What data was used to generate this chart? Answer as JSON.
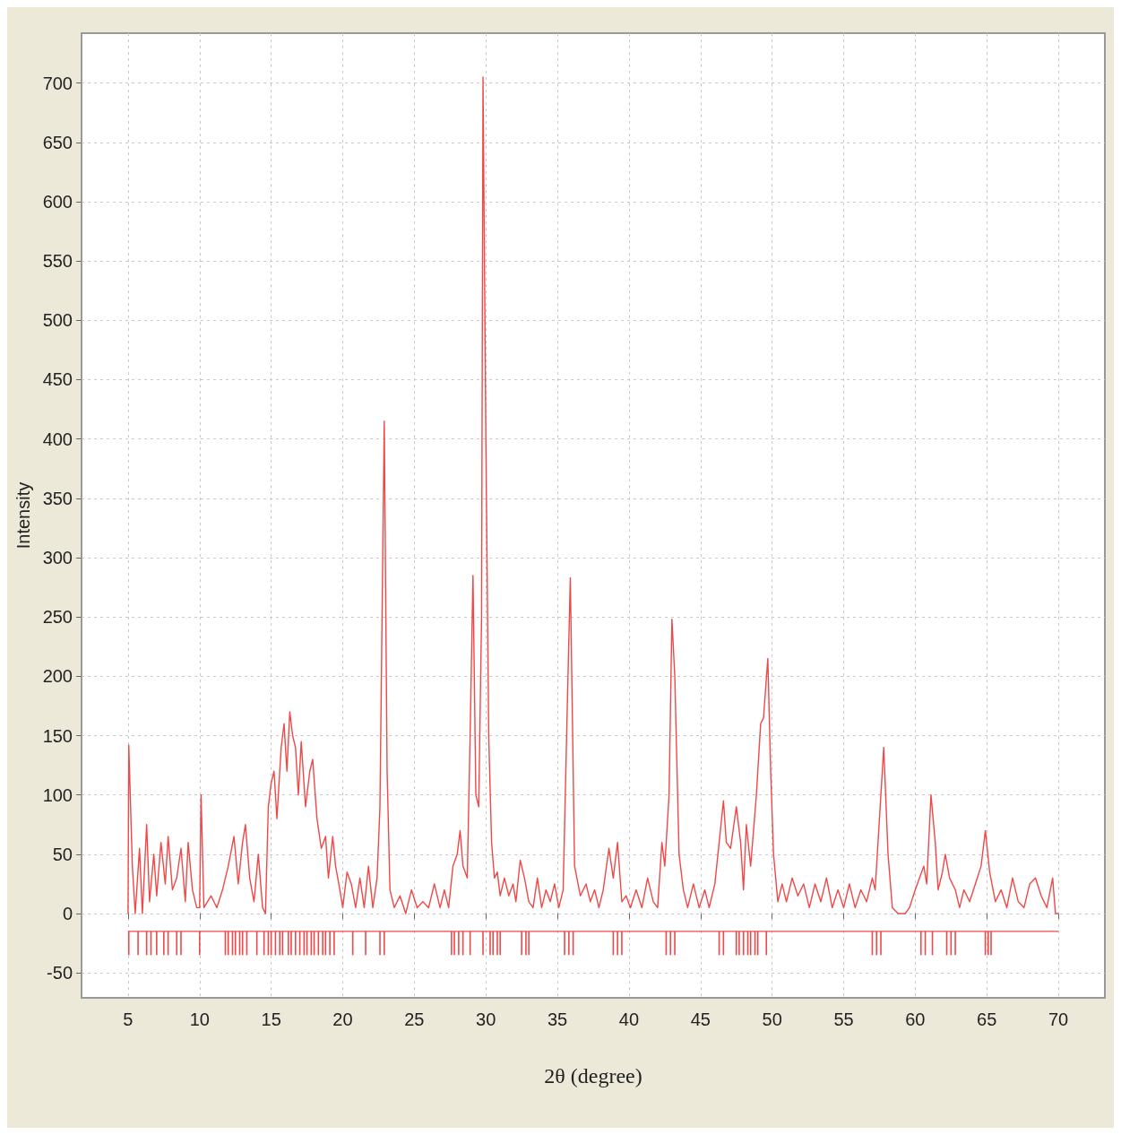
{
  "chart_data": {
    "type": "line",
    "xlabel": "2θ (degree)",
    "ylabel": "Intensity",
    "xlim": [
      1.75,
      73.25
    ],
    "ylim": [
      -71,
      742
    ],
    "xticks": [
      5,
      10,
      15,
      20,
      25,
      30,
      35,
      40,
      45,
      50,
      55,
      60,
      65,
      70
    ],
    "yticks": [
      -50,
      0,
      50,
      100,
      150,
      200,
      250,
      300,
      350,
      400,
      450,
      500,
      550,
      600,
      650,
      700
    ],
    "grid": true,
    "series": [
      {
        "color": "#f04848",
        "x": [
          5.0,
          5.05,
          5.3,
          5.5,
          5.8,
          6.0,
          6.3,
          6.5,
          6.8,
          7.0,
          7.3,
          7.6,
          7.8,
          8.1,
          8.4,
          8.7,
          9.0,
          9.2,
          9.5,
          9.8,
          10.0,
          10.1,
          10.3,
          10.8,
          11.2,
          11.6,
          12.0,
          12.4,
          12.7,
          13.0,
          13.2,
          13.5,
          13.8,
          14.1,
          14.4,
          14.6,
          14.8,
          15.0,
          15.2,
          15.4,
          15.7,
          15.9,
          16.1,
          16.3,
          16.5,
          16.7,
          16.9,
          17.1,
          17.4,
          17.7,
          17.9,
          18.2,
          18.5,
          18.8,
          19.0,
          19.3,
          19.5,
          19.8,
          20.0,
          20.3,
          20.6,
          20.9,
          21.2,
          21.5,
          21.8,
          22.1,
          22.4,
          22.6,
          22.9,
          23.1,
          23.3,
          23.6,
          24.0,
          24.4,
          24.8,
          25.2,
          25.6,
          26.0,
          26.4,
          26.8,
          27.1,
          27.4,
          27.7,
          28.0,
          28.2,
          28.4,
          28.7,
          28.9,
          29.1,
          29.3,
          29.5,
          29.7,
          29.8,
          30.0,
          30.2,
          30.4,
          30.6,
          30.8,
          31.0,
          31.3,
          31.6,
          31.9,
          32.1,
          32.4,
          32.7,
          33.0,
          33.3,
          33.6,
          33.9,
          34.2,
          34.5,
          34.8,
          35.1,
          35.4,
          35.7,
          35.9,
          36.2,
          36.6,
          37.0,
          37.3,
          37.6,
          37.9,
          38.2,
          38.6,
          38.9,
          39.2,
          39.5,
          39.8,
          40.1,
          40.5,
          40.9,
          41.3,
          41.7,
          42.0,
          42.3,
          42.5,
          42.8,
          43.0,
          43.2,
          43.5,
          43.8,
          44.1,
          44.5,
          44.9,
          45.3,
          45.6,
          46.0,
          46.3,
          46.6,
          46.8,
          47.1,
          47.5,
          47.8,
          48.0,
          48.2,
          48.5,
          48.9,
          49.2,
          49.4,
          49.7,
          49.9,
          50.1,
          50.4,
          50.7,
          51.0,
          51.4,
          51.8,
          52.2,
          52.6,
          53.0,
          53.4,
          53.8,
          54.2,
          54.6,
          55.0,
          55.4,
          55.8,
          56.2,
          56.6,
          57.0,
          57.2,
          57.6,
          57.8,
          58.1,
          58.4,
          58.8,
          59.3,
          59.6,
          60.0,
          60.3,
          60.6,
          60.8,
          61.1,
          61.4,
          61.6,
          61.9,
          62.1,
          62.4,
          62.8,
          63.1,
          63.4,
          63.8,
          64.2,
          64.6,
          64.9,
          65.2,
          65.6,
          66.0,
          66.4,
          66.8,
          67.2,
          67.6,
          68.0,
          68.4,
          68.8,
          69.2,
          69.6,
          69.8,
          70.0
        ],
        "values": [
          0,
          142,
          40,
          0,
          55,
          0,
          75,
          10,
          50,
          15,
          60,
          25,
          65,
          20,
          30,
          55,
          10,
          60,
          20,
          5,
          5,
          100,
          5,
          15,
          5,
          20,
          40,
          65,
          25,
          60,
          75,
          30,
          10,
          50,
          5,
          0,
          90,
          110,
          120,
          80,
          140,
          160,
          120,
          170,
          150,
          140,
          100,
          145,
          90,
          120,
          130,
          80,
          55,
          65,
          30,
          65,
          40,
          20,
          5,
          35,
          25,
          5,
          30,
          5,
          40,
          5,
          30,
          90,
          415,
          120,
          20,
          5,
          15,
          0,
          20,
          5,
          10,
          5,
          25,
          5,
          20,
          5,
          40,
          50,
          70,
          40,
          30,
          150,
          285,
          100,
          90,
          250,
          705,
          400,
          150,
          60,
          30,
          35,
          15,
          30,
          15,
          25,
          10,
          45,
          30,
          10,
          5,
          30,
          5,
          20,
          10,
          25,
          5,
          20,
          180,
          283,
          40,
          15,
          25,
          10,
          20,
          5,
          20,
          55,
          30,
          60,
          10,
          15,
          5,
          20,
          5,
          30,
          10,
          5,
          60,
          40,
          100,
          248,
          200,
          50,
          20,
          5,
          25,
          5,
          20,
          5,
          25,
          60,
          95,
          60,
          55,
          90,
          60,
          20,
          75,
          40,
          100,
          160,
          165,
          215,
          120,
          50,
          10,
          25,
          10,
          30,
          15,
          25,
          5,
          25,
          10,
          30,
          5,
          20,
          5,
          25,
          5,
          20,
          10,
          30,
          20,
          100,
          140,
          50,
          5,
          0,
          0,
          5,
          20,
          30,
          40,
          25,
          100,
          60,
          20,
          35,
          50,
          30,
          20,
          5,
          20,
          10,
          25,
          40,
          70,
          35,
          10,
          20,
          5,
          30,
          10,
          5,
          25,
          30,
          15,
          5,
          30,
          0,
          0
        ]
      },
      {
        "type": "bar",
        "color": "#f04848",
        "x": [
          5.05,
          5.7,
          6.3,
          6.6,
          7.0,
          7.5,
          7.8,
          8.4,
          8.7,
          10.0,
          11.8,
          12.0,
          12.3,
          12.5,
          12.8,
          13.0,
          13.3,
          14.0,
          14.5,
          14.8,
          15.0,
          15.3,
          15.6,
          15.8,
          16.2,
          16.4,
          16.7,
          17.0,
          17.3,
          17.5,
          17.8,
          18.0,
          18.3,
          18.6,
          18.8,
          19.1,
          19.4,
          20.7,
          21.6,
          22.6,
          22.9,
          27.6,
          27.8,
          28.1,
          28.4,
          28.9,
          29.8,
          30.3,
          30.5,
          30.8,
          31.0,
          32.5,
          32.8,
          33.0,
          35.5,
          35.8,
          36.1,
          38.9,
          39.2,
          39.5,
          42.6,
          42.9,
          43.2,
          46.3,
          46.6,
          47.5,
          47.7,
          48.0,
          48.3,
          48.5,
          48.8,
          49.0,
          49.6,
          57.0,
          57.3,
          57.6,
          60.4,
          60.7,
          61.2,
          62.2,
          62.5,
          62.8,
          64.9,
          65.1,
          65.3
        ],
        "base": [
          -35,
          -35,
          -35,
          -35,
          -35,
          -35,
          -35,
          -35,
          -35,
          -35,
          -35,
          -35,
          -35,
          -35,
          -35,
          -35,
          -35,
          -35,
          -35,
          -35,
          -35,
          -35,
          -35,
          -35,
          -35,
          -35,
          -35,
          -35,
          -35,
          -35,
          -35,
          -35,
          -35,
          -35,
          -35,
          -35,
          -35,
          -35,
          -35,
          -35,
          -35,
          -35,
          -35,
          -35,
          -35,
          -35,
          -35,
          -35,
          -35,
          -35,
          -35,
          -35,
          -35,
          -35,
          -35,
          -35,
          -35,
          -35,
          -35,
          -35,
          -35,
          -35,
          -35,
          -35,
          -35,
          -35,
          -35,
          -35,
          -35,
          -35,
          -35,
          -35,
          -35,
          -35,
          -35,
          -35,
          -35,
          -35,
          -35,
          -35,
          -35,
          -35,
          -35,
          -35,
          -35
        ],
        "values": [
          20,
          20,
          20,
          20,
          20,
          20,
          20,
          20,
          20,
          20,
          20,
          20,
          20,
          20,
          20,
          20,
          20,
          20,
          20,
          20,
          20,
          20,
          20,
          20,
          20,
          20,
          20,
          20,
          20,
          20,
          20,
          20,
          20,
          20,
          20,
          20,
          20,
          20,
          20,
          20,
          20,
          20,
          20,
          20,
          20,
          20,
          20,
          20,
          20,
          20,
          20,
          20,
          20,
          20,
          20,
          20,
          20,
          20,
          20,
          20,
          20,
          20,
          20,
          20,
          20,
          20,
          20,
          20,
          20,
          20,
          20,
          20,
          20,
          20,
          20,
          20,
          20,
          20,
          20,
          20,
          20,
          20,
          20,
          20,
          20
        ]
      },
      {
        "type": "line",
        "color": "#f04848",
        "x": [
          5,
          70
        ],
        "values": [
          -15,
          -15
        ]
      }
    ]
  }
}
